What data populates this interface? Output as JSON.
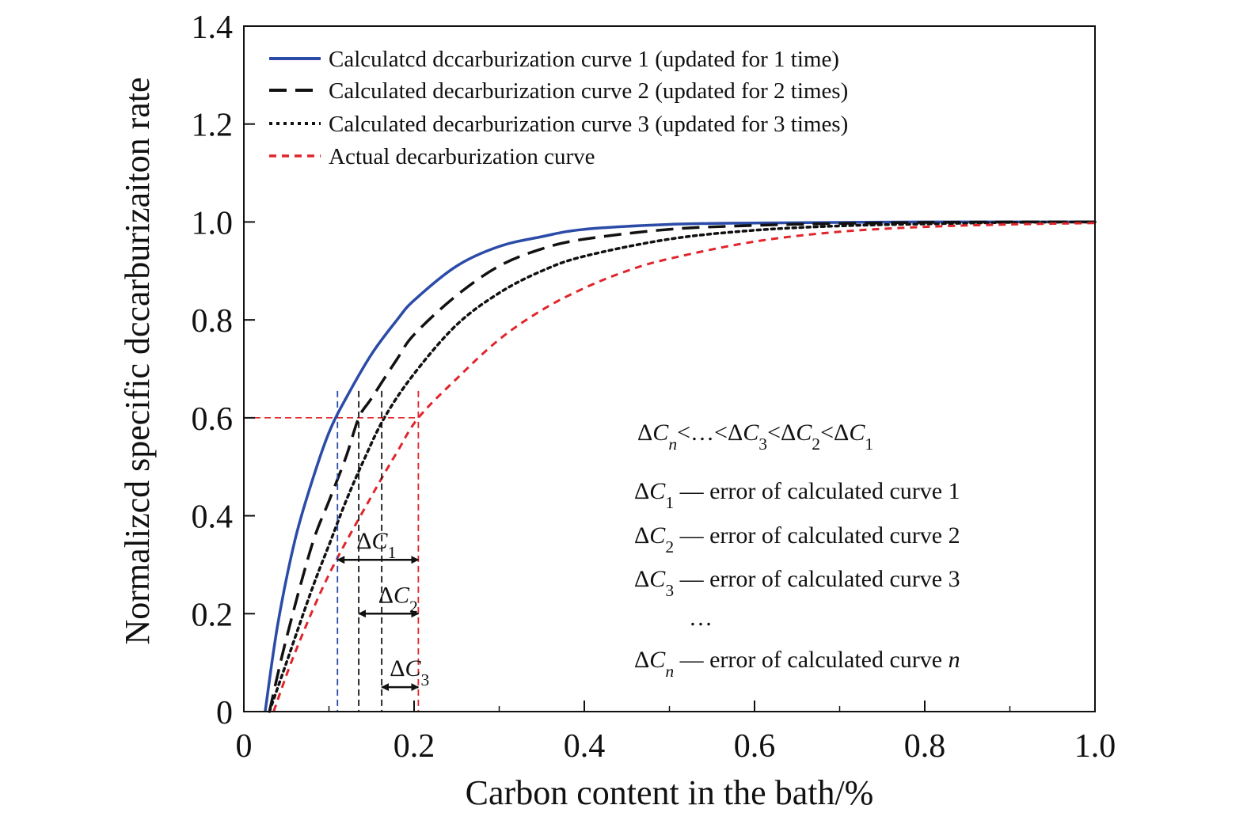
{
  "chart_data": {
    "type": "line",
    "xlabel": "Carbon content in the bath/%",
    "ylabel": "Normalizcd specific dccarburizaiton rate",
    "xlim": [
      0,
      1.0
    ],
    "ylim": [
      0,
      1.4
    ],
    "x_ticks": [
      "0",
      "0.2",
      "0.4",
      "0.6",
      "0.8",
      "1.0"
    ],
    "y_ticks": [
      "0",
      "0.2",
      "0.4",
      "0.6",
      "0.8",
      "1.0",
      "1.2",
      "1.4"
    ],
    "x_tick_values": [
      0,
      0.2,
      0.4,
      0.6,
      0.8,
      1.0
    ],
    "y_tick_values": [
      0,
      0.2,
      0.4,
      0.6,
      0.8,
      1.0,
      1.2,
      1.4
    ],
    "legend_position": "top-left",
    "series": [
      {
        "name": "Calculatcd dccarburization curve 1 (updated for 1 time)",
        "color": "#2b4ba8",
        "style": "solid",
        "x": [
          0.025,
          0.04,
          0.06,
          0.08,
          0.1,
          0.12,
          0.15,
          0.18,
          0.2,
          0.25,
          0.3,
          0.35,
          0.4,
          0.5,
          0.6,
          0.7,
          0.8,
          0.9,
          1.0
        ],
        "y": [
          0.0,
          0.18,
          0.35,
          0.47,
          0.57,
          0.64,
          0.73,
          0.8,
          0.84,
          0.91,
          0.95,
          0.97,
          0.985,
          0.995,
          0.998,
          0.999,
          1.0,
          1.0,
          1.0
        ]
      },
      {
        "name": "Calculated decarburization curve 2 (updated for 2 times)",
        "color": "#111111",
        "style": "dash",
        "x": [
          0.03,
          0.05,
          0.08,
          0.1,
          0.12,
          0.135,
          0.15,
          0.18,
          0.2,
          0.25,
          0.3,
          0.35,
          0.4,
          0.5,
          0.6,
          0.7,
          0.8,
          0.9,
          1.0
        ],
        "y": [
          0.0,
          0.15,
          0.34,
          0.43,
          0.52,
          0.6,
          0.64,
          0.72,
          0.77,
          0.85,
          0.91,
          0.945,
          0.965,
          0.985,
          0.993,
          0.997,
          0.999,
          1.0,
          1.0
        ]
      },
      {
        "name": "Calculated decarburization curve 3 (updated for 3 times)",
        "color": "#111111",
        "style": "dot",
        "x": [
          0.03,
          0.05,
          0.08,
          0.1,
          0.12,
          0.14,
          0.165,
          0.2,
          0.25,
          0.3,
          0.35,
          0.4,
          0.5,
          0.6,
          0.7,
          0.8,
          0.9,
          1.0
        ],
        "y": [
          0.0,
          0.1,
          0.25,
          0.34,
          0.43,
          0.51,
          0.6,
          0.69,
          0.79,
          0.855,
          0.9,
          0.93,
          0.965,
          0.983,
          0.992,
          0.996,
          0.999,
          1.0
        ]
      },
      {
        "name": "Actual decarburization curve",
        "color": "#e0252b",
        "style": "shortdash",
        "x": [
          0.035,
          0.06,
          0.1,
          0.15,
          0.18,
          0.205,
          0.25,
          0.3,
          0.35,
          0.4,
          0.45,
          0.5,
          0.6,
          0.7,
          0.8,
          0.9,
          1.0
        ],
        "y": [
          0.0,
          0.12,
          0.28,
          0.44,
          0.53,
          0.6,
          0.68,
          0.76,
          0.82,
          0.865,
          0.9,
          0.925,
          0.96,
          0.98,
          0.99,
          0.995,
          0.998
        ]
      }
    ],
    "reference_lines": {
      "horizontal_y": 0.6,
      "horizontal_color": "#e0252b",
      "verticals": [
        {
          "x": 0.11,
          "color": "#2b4ba8"
        },
        {
          "x": 0.135,
          "color": "#111111"
        },
        {
          "x": 0.162,
          "color": "#111111"
        },
        {
          "x": 0.205,
          "color": "#e0252b"
        }
      ]
    },
    "delta_arrows": [
      {
        "label": "ΔC",
        "subscript": "1",
        "x_from": 0.11,
        "x_to": 0.205,
        "y": 0.31
      },
      {
        "label": "ΔC",
        "subscript": "2",
        "x_from": 0.135,
        "x_to": 0.205,
        "y": 0.2
      },
      {
        "label": "ΔC",
        "subscript": "3",
        "x_from": 0.162,
        "x_to": 0.205,
        "y": 0.05
      }
    ],
    "annotations": {
      "inequality": {
        "parts": [
          {
            "t": "ΔC"
          },
          {
            "t": "n",
            "sub": true,
            "italic": true
          },
          {
            "t": "<…<ΔC"
          },
          {
            "t": "3",
            "sub": true
          },
          {
            "t": "<ΔC"
          },
          {
            "t": "2",
            "sub": true
          },
          {
            "t": "<ΔC"
          },
          {
            "t": "1",
            "sub": true
          }
        ]
      },
      "error_lines": [
        {
          "sub": "1",
          "text": " — error of calculated curve 1"
        },
        {
          "sub": "2",
          "text": " — error of calculated curve 2"
        },
        {
          "sub": "3",
          "text": " — error of calculated curve 3"
        },
        {
          "sub": "n",
          "text": " — error of calculated curve ",
          "tail_italic": "n"
        }
      ],
      "ellipsis": "…"
    }
  }
}
